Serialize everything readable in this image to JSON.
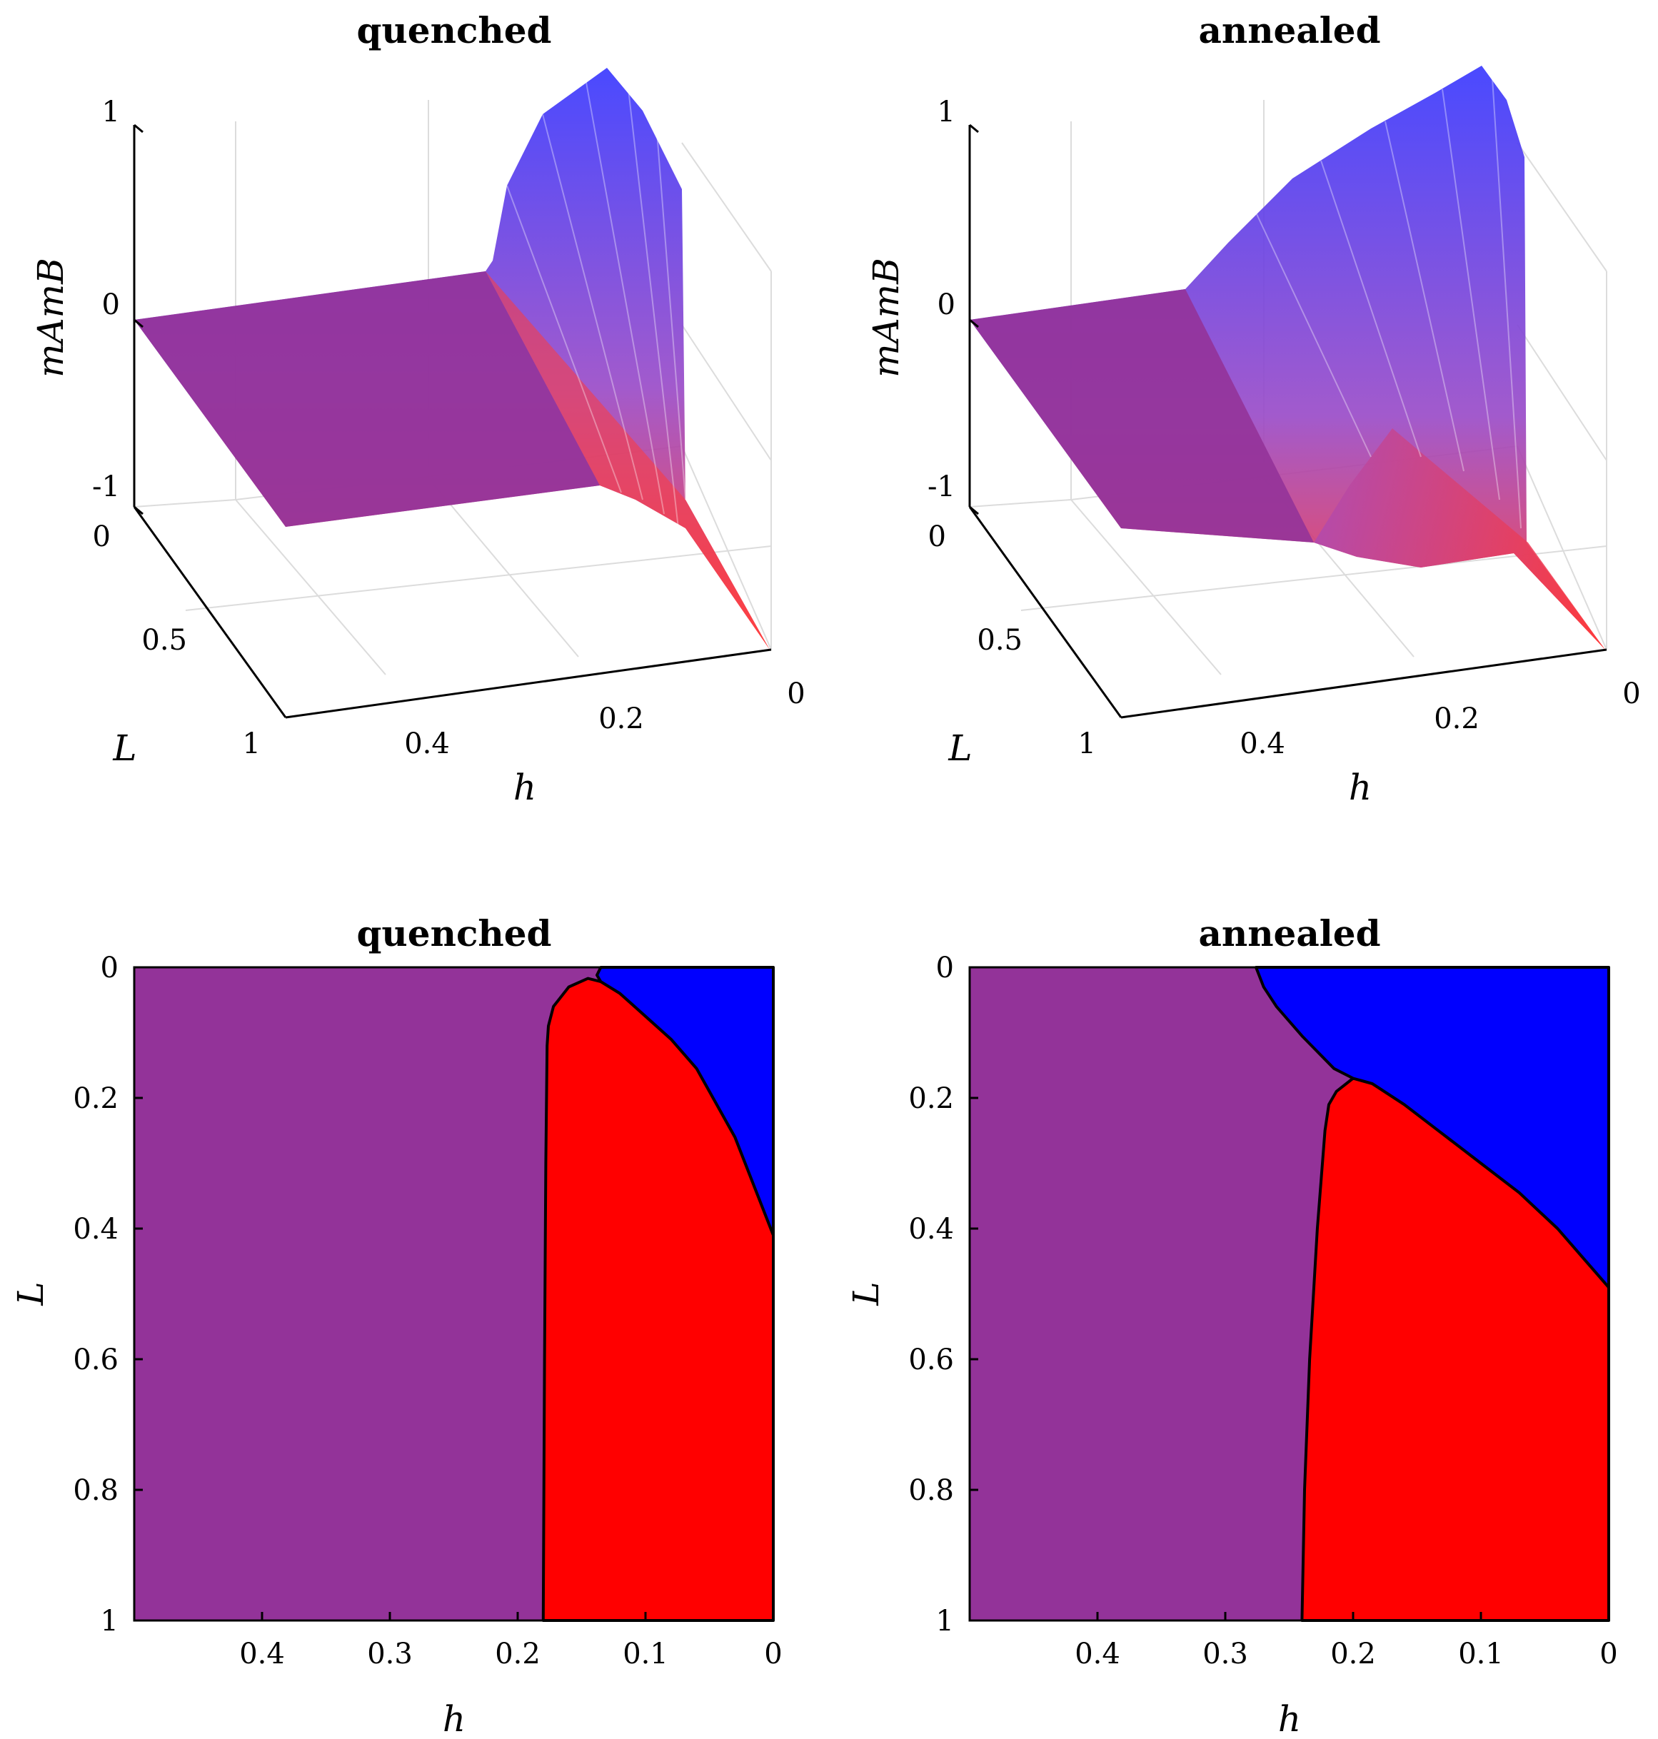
{
  "colors": {
    "purple": "#933399",
    "red": "#ff0000",
    "blue": "#0000ff",
    "surface_top": "#5a3cf0",
    "surface_bottom": "#ff3333",
    "grid": "#dcdcdc",
    "boundary": "#000000"
  },
  "chart_data": [
    {
      "type": "surface",
      "title": "quenched",
      "xlabel": "h",
      "ylabel": "L",
      "zlabel": "mAmB",
      "xlim": [
        0.5,
        0
      ],
      "ylim": [
        0,
        1
      ],
      "zlim": [
        -1,
        1
      ],
      "xticks": [
        "0.4",
        "0.2",
        "0"
      ],
      "yticks": [
        "0",
        "0.5",
        "1"
      ],
      "zticks": [
        "1",
        "0",
        "-1"
      ],
      "h_threshold": 0.18,
      "peak_value": 1.0
    },
    {
      "type": "surface",
      "title": "annealed",
      "xlabel": "h",
      "ylabel": "L",
      "zlabel": "mAmB",
      "xlim": [
        0.5,
        0
      ],
      "ylim": [
        0,
        1
      ],
      "zlim": [
        -1,
        1
      ],
      "xticks": [
        "0.4",
        "0.2",
        "0"
      ],
      "yticks": [
        "0",
        "0.5",
        "1"
      ],
      "zticks": [
        "1",
        "0",
        "-1"
      ],
      "h_threshold": 0.24,
      "peak_value": 1.0
    },
    {
      "type": "phase_diagram",
      "title": "quenched",
      "xlabel": "h",
      "ylabel": "L",
      "xlim": [
        0.5,
        0
      ],
      "ylim": [
        0,
        1
      ],
      "xticks": [
        "0.4",
        "0.3",
        "0.2",
        "0.1",
        "0"
      ],
      "yticks": [
        "0",
        "0.2",
        "0.4",
        "0.6",
        "0.8",
        "1"
      ],
      "regions": [
        {
          "name": "purple-region",
          "color": "#933399",
          "points": []
        },
        {
          "name": "red-region",
          "color": "#ff0000",
          "points": [
            [
              0.18,
              1.0
            ],
            [
              0.179,
              0.6
            ],
            [
              0.178,
              0.3
            ],
            [
              0.177,
              0.12
            ],
            [
              0.176,
              0.09
            ],
            [
              0.172,
              0.06
            ],
            [
              0.16,
              0.03
            ],
            [
              0.145,
              0.017
            ],
            [
              0.135,
              0.022
            ],
            [
              0.12,
              0.04
            ],
            [
              0.1,
              0.075
            ],
            [
              0.08,
              0.11
            ],
            [
              0.06,
              0.155
            ],
            [
              0.05,
              0.19
            ],
            [
              0.03,
              0.26
            ],
            [
              0.0,
              0.41
            ],
            [
              0.0,
              1.0
            ]
          ]
        },
        {
          "name": "blue-region",
          "color": "#0000ff",
          "points": [
            [
              0.135,
              0.0
            ],
            [
              0.0,
              0.0
            ],
            [
              0.0,
              0.41
            ],
            [
              0.03,
              0.26
            ],
            [
              0.05,
              0.19
            ],
            [
              0.06,
              0.155
            ],
            [
              0.08,
              0.11
            ],
            [
              0.1,
              0.075
            ],
            [
              0.12,
              0.04
            ],
            [
              0.135,
              0.022
            ],
            [
              0.138,
              0.012
            ]
          ]
        }
      ]
    },
    {
      "type": "phase_diagram",
      "title": "annealed",
      "xlabel": "h",
      "ylabel": "L",
      "xlim": [
        0.5,
        0
      ],
      "ylim": [
        0,
        1
      ],
      "xticks": [
        "0.4",
        "0.3",
        "0.2",
        "0.1",
        "0"
      ],
      "yticks": [
        "0",
        "0.2",
        "0.4",
        "0.6",
        "0.8",
        "1"
      ],
      "regions": [
        {
          "name": "purple-region",
          "color": "#933399",
          "points": []
        },
        {
          "name": "red-region",
          "color": "#ff0000",
          "points": [
            [
              0.24,
              1.0
            ],
            [
              0.238,
              0.8
            ],
            [
              0.234,
              0.6
            ],
            [
              0.228,
              0.4
            ],
            [
              0.222,
              0.25
            ],
            [
              0.219,
              0.21
            ],
            [
              0.213,
              0.19
            ],
            [
              0.2,
              0.17
            ],
            [
              0.185,
              0.178
            ],
            [
              0.16,
              0.21
            ],
            [
              0.13,
              0.255
            ],
            [
              0.1,
              0.3
            ],
            [
              0.07,
              0.345
            ],
            [
              0.04,
              0.4
            ],
            [
              0.02,
              0.445
            ],
            [
              0.0,
              0.49
            ],
            [
              0.0,
              1.0
            ]
          ]
        },
        {
          "name": "blue-region",
          "color": "#0000ff",
          "points": [
            [
              0.276,
              0.0
            ],
            [
              0.0,
              0.0
            ],
            [
              0.0,
              0.49
            ],
            [
              0.02,
              0.445
            ],
            [
              0.04,
              0.4
            ],
            [
              0.07,
              0.345
            ],
            [
              0.1,
              0.3
            ],
            [
              0.13,
              0.255
            ],
            [
              0.16,
              0.21
            ],
            [
              0.185,
              0.178
            ],
            [
              0.2,
              0.17
            ],
            [
              0.215,
              0.155
            ],
            [
              0.24,
              0.105
            ],
            [
              0.26,
              0.06
            ],
            [
              0.27,
              0.03
            ]
          ]
        }
      ]
    }
  ]
}
